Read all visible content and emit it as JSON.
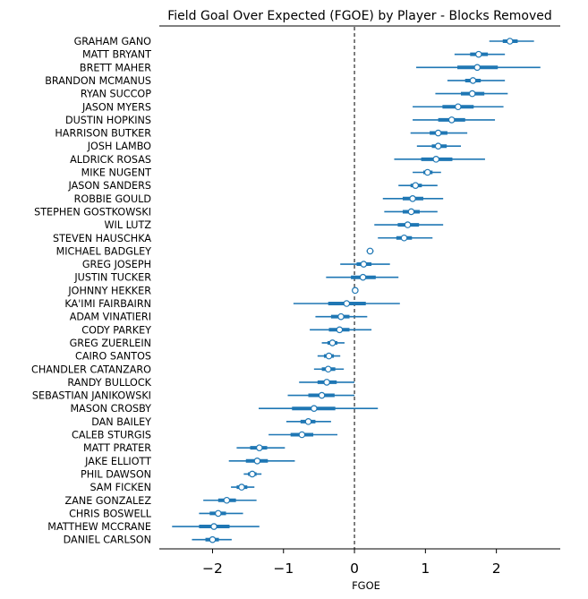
{
  "chart_data": {
    "type": "forest",
    "title": "Field Goal Over Expected (FGOE) by Player - Blocks Removed",
    "xlabel": "FGOE",
    "xlim": [
      -2.75,
      2.9
    ],
    "xticks": [
      -2,
      -1,
      0,
      1,
      2
    ],
    "xtick_labels": [
      "−2",
      "−1",
      "0",
      "1",
      "2"
    ],
    "reference_line_x": 0,
    "color": "#1f77b4",
    "players": [
      {
        "name": "GRAHAM GANO",
        "mean": 2.19,
        "iqr": [
          2.09,
          2.3
        ],
        "ci": [
          1.9,
          2.53
        ]
      },
      {
        "name": "MATT BRYANT",
        "mean": 1.75,
        "iqr": [
          1.63,
          1.88
        ],
        "ci": [
          1.41,
          2.12
        ]
      },
      {
        "name": "BRETT MAHER",
        "mean": 1.73,
        "iqr": [
          1.45,
          2.02
        ],
        "ci": [
          0.87,
          2.62
        ]
      },
      {
        "name": "BRANDON MCMANUS",
        "mean": 1.67,
        "iqr": [
          1.56,
          1.78
        ],
        "ci": [
          1.31,
          2.12
        ]
      },
      {
        "name": "RYAN SUCCOP",
        "mean": 1.66,
        "iqr": [
          1.5,
          1.83
        ],
        "ci": [
          1.14,
          2.16
        ]
      },
      {
        "name": "JASON MYERS",
        "mean": 1.46,
        "iqr": [
          1.24,
          1.68
        ],
        "ci": [
          0.82,
          2.1
        ]
      },
      {
        "name": "DUSTIN HOPKINS",
        "mean": 1.37,
        "iqr": [
          1.18,
          1.56
        ],
        "ci": [
          0.82,
          1.98
        ]
      },
      {
        "name": "HARRISON BUTKER",
        "mean": 1.18,
        "iqr": [
          1.06,
          1.31
        ],
        "ci": [
          0.79,
          1.59
        ]
      },
      {
        "name": "JOSH LAMBO",
        "mean": 1.18,
        "iqr": [
          1.09,
          1.3
        ],
        "ci": [
          0.88,
          1.5
        ]
      },
      {
        "name": "ALDRICK ROSAS",
        "mean": 1.15,
        "iqr": [
          0.94,
          1.38
        ],
        "ci": [
          0.56,
          1.84
        ]
      },
      {
        "name": "MIKE NUGENT",
        "mean": 1.03,
        "iqr": [
          0.97,
          1.1
        ],
        "ci": [
          0.82,
          1.22
        ]
      },
      {
        "name": "JASON SANDERS",
        "mean": 0.86,
        "iqr": [
          0.79,
          0.95
        ],
        "ci": [
          0.62,
          1.17
        ]
      },
      {
        "name": "ROBBIE GOULD",
        "mean": 0.82,
        "iqr": [
          0.68,
          0.97
        ],
        "ci": [
          0.4,
          1.25
        ]
      },
      {
        "name": "STEPHEN GOSTKOWSKI",
        "mean": 0.8,
        "iqr": [
          0.68,
          0.92
        ],
        "ci": [
          0.42,
          1.17
        ]
      },
      {
        "name": "WIL LUTZ",
        "mean": 0.75,
        "iqr": [
          0.61,
          0.91
        ],
        "ci": [
          0.28,
          1.25
        ]
      },
      {
        "name": "STEVEN HAUSCHKA",
        "mean": 0.7,
        "iqr": [
          0.59,
          0.81
        ],
        "ci": [
          0.33,
          1.1
        ]
      },
      {
        "name": "MICHAEL BADGLEY",
        "mean": 0.22,
        "iqr": [
          0.19,
          0.25
        ],
        "ci": [
          0.17,
          0.27
        ]
      },
      {
        "name": "GREG JOSEPH",
        "mean": 0.13,
        "iqr": [
          0.03,
          0.24
        ],
        "ci": [
          -0.2,
          0.5
        ]
      },
      {
        "name": "JUSTIN TUCKER",
        "mean": 0.12,
        "iqr": [
          -0.05,
          0.3
        ],
        "ci": [
          -0.4,
          0.62
        ]
      },
      {
        "name": "JOHNNY HEKKER",
        "mean": 0.01,
        "iqr": [
          0.0,
          0.02
        ],
        "ci": [
          -0.01,
          0.03
        ]
      },
      {
        "name": "KA'IMI FAIRBAIRN",
        "mean": -0.11,
        "iqr": [
          -0.37,
          0.16
        ],
        "ci": [
          -0.86,
          0.64
        ]
      },
      {
        "name": "ADAM VINATIERI",
        "mean": -0.19,
        "iqr": [
          -0.33,
          -0.07
        ],
        "ci": [
          -0.55,
          0.18
        ]
      },
      {
        "name": "CODY PARKEY",
        "mean": -0.21,
        "iqr": [
          -0.36,
          -0.07
        ],
        "ci": [
          -0.63,
          0.24
        ]
      },
      {
        "name": "GREG ZUERLEIN",
        "mean": -0.31,
        "iqr": [
          -0.38,
          -0.24
        ],
        "ci": [
          -0.46,
          -0.14
        ]
      },
      {
        "name": "CAIRO SANTOS",
        "mean": -0.36,
        "iqr": [
          -0.43,
          -0.29
        ],
        "ci": [
          -0.52,
          -0.2
        ]
      },
      {
        "name": "CHANDLER CATANZARO",
        "mean": -0.37,
        "iqr": [
          -0.46,
          -0.27
        ],
        "ci": [
          -0.57,
          -0.15
        ]
      },
      {
        "name": "RANDY BULLOCK",
        "mean": -0.39,
        "iqr": [
          -0.52,
          -0.25
        ],
        "ci": [
          -0.78,
          0.0
        ]
      },
      {
        "name": "SEBASTIAN JANIKOWSKI",
        "mean": -0.46,
        "iqr": [
          -0.65,
          -0.28
        ],
        "ci": [
          -0.94,
          0.0
        ]
      },
      {
        "name": "MASON CROSBY",
        "mean": -0.57,
        "iqr": [
          -0.88,
          -0.27
        ],
        "ci": [
          -1.35,
          0.33
        ]
      },
      {
        "name": "DAN BAILEY",
        "mean": -0.65,
        "iqr": [
          -0.76,
          -0.55
        ],
        "ci": [
          -0.96,
          -0.33
        ]
      },
      {
        "name": "CALEB STURGIS",
        "mean": -0.74,
        "iqr": [
          -0.9,
          -0.58
        ],
        "ci": [
          -1.21,
          -0.24
        ]
      },
      {
        "name": "MATT PRATER",
        "mean": -1.34,
        "iqr": [
          -1.47,
          -1.23
        ],
        "ci": [
          -1.66,
          -0.98
        ]
      },
      {
        "name": "JAKE ELLIOTT",
        "mean": -1.37,
        "iqr": [
          -1.53,
          -1.22
        ],
        "ci": [
          -1.77,
          -0.84
        ]
      },
      {
        "name": "PHIL DAWSON",
        "mean": -1.44,
        "iqr": [
          -1.5,
          -1.38
        ],
        "ci": [
          -1.56,
          -1.31
        ]
      },
      {
        "name": "SAM FICKEN",
        "mean": -1.59,
        "iqr": [
          -1.66,
          -1.51
        ],
        "ci": [
          -1.74,
          -1.41
        ]
      },
      {
        "name": "ZANE GONZALEZ",
        "mean": -1.8,
        "iqr": [
          -1.92,
          -1.67
        ],
        "ci": [
          -2.13,
          -1.38
        ]
      },
      {
        "name": "CHRIS BOSWELL",
        "mean": -1.92,
        "iqr": [
          -2.04,
          -1.81
        ],
        "ci": [
          -2.19,
          -1.57
        ]
      },
      {
        "name": "MATTHEW MCCRANE",
        "mean": -1.98,
        "iqr": [
          -2.19,
          -1.76
        ],
        "ci": [
          -2.57,
          -1.34
        ]
      },
      {
        "name": "DANIEL CARLSON",
        "mean": -2.0,
        "iqr": [
          -2.1,
          -1.91
        ],
        "ci": [
          -2.29,
          -1.73
        ]
      }
    ]
  }
}
